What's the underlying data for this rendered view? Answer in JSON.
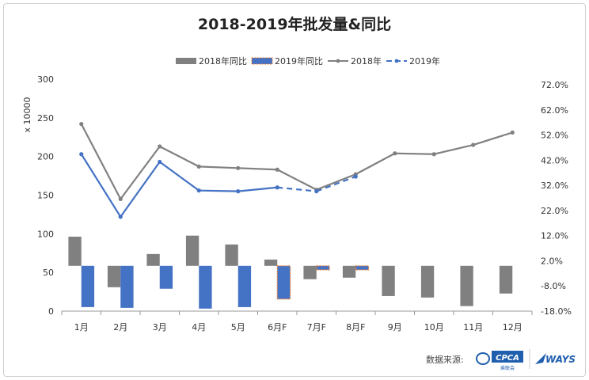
{
  "chart_data": {
    "type": "bar+line",
    "title": "2018-2019年批发量&同比",
    "ylabel_left": "x 10000",
    "categories": [
      "1月",
      "2月",
      "3月",
      "4月",
      "5月",
      "6月F",
      "7月F",
      "8月F",
      "9月",
      "10月",
      "11月",
      "12月"
    ],
    "left_axis": {
      "range": [
        0,
        300
      ],
      "ticks": [
        0,
        50,
        100,
        150,
        200,
        250,
        300
      ]
    },
    "right_axis": {
      "range": [
        -18,
        72
      ],
      "ticks": [
        "-18.0%",
        "-8.0%",
        "2.0%",
        "12.0%",
        "22.0%",
        "32.0%",
        "42.0%",
        "52.0%",
        "62.0%",
        "72.0%"
      ]
    },
    "series": [
      {
        "name": "2018年同比",
        "kind": "bar",
        "axis": "right",
        "color": "#808080",
        "values": [
          11.6,
          -8.5,
          4.7,
          12.0,
          8.5,
          2.5,
          -5.3,
          -4.7,
          -12.0,
          -12.6,
          -16.0,
          -11.0
        ]
      },
      {
        "name": "2019年同比",
        "kind": "bar",
        "axis": "right",
        "color": "#4472c4",
        "forecast_border": "#ed7d31",
        "values": [
          -16.4,
          -16.7,
          -9.1,
          -17.0,
          -16.4,
          -13.2,
          -1.6,
          -1.6,
          null,
          null,
          null,
          null
        ]
      },
      {
        "name": "2018年",
        "kind": "line",
        "axis": "left",
        "color": "#808080",
        "values": [
          242,
          145,
          213,
          187,
          185,
          183,
          157,
          177,
          204,
          203,
          215,
          231
        ]
      },
      {
        "name": "2019年",
        "kind": "line",
        "axis": "left",
        "color": "#4472c4",
        "dashed_from_index": 5,
        "values": [
          203,
          122,
          193,
          156,
          155,
          160,
          155,
          174,
          null,
          null,
          null,
          null
        ]
      }
    ],
    "legend": "top",
    "grid": false
  },
  "source": {
    "label": "数据来源:",
    "logo1": "CPCA",
    "logo1_sub": "乘联会",
    "logo2": "WAYS"
  }
}
